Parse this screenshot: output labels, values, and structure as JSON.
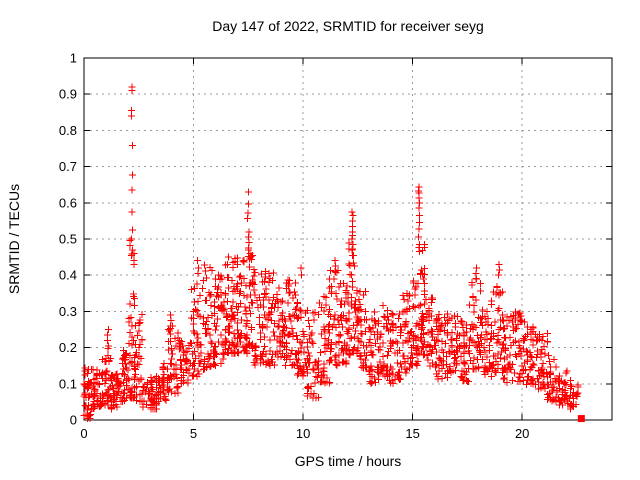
{
  "chart_data": {
    "type": "scatter",
    "title": "Day 147 of 2022, SRMTID for receiver seyg",
    "xlabel": "GPS time / hours",
    "ylabel": "SRMTID / TECUs",
    "xlim": [
      0,
      24.1
    ],
    "ylim": [
      0,
      1
    ],
    "xticks": [
      {
        "v": 0,
        "label": "0"
      },
      {
        "v": 5,
        "label": "5"
      },
      {
        "v": 10,
        "label": "10"
      },
      {
        "v": 15,
        "label": "15"
      },
      {
        "v": 20,
        "label": "20"
      }
    ],
    "yticks": [
      {
        "v": 0.0,
        "label": "0"
      },
      {
        "v": 0.1,
        "label": "0.1"
      },
      {
        "v": 0.2,
        "label": "0.2"
      },
      {
        "v": 0.3,
        "label": "0.3"
      },
      {
        "v": 0.4,
        "label": "0.4"
      },
      {
        "v": 0.5,
        "label": "0.5"
      },
      {
        "v": 0.6,
        "label": "0.6"
      },
      {
        "v": 0.7,
        "label": "0.7"
      },
      {
        "v": 0.8,
        "label": "0.8"
      },
      {
        "v": 0.9,
        "label": "0.9"
      },
      {
        "v": 1.0,
        "label": "1"
      }
    ],
    "grid": true,
    "legend": "none",
    "marker": "plus",
    "marker_color": "#ff0000",
    "grid_color": "#9b9b9b",
    "axis_color": "#000000",
    "background": "#ffffff",
    "seed": 42,
    "x_quantum_hours": 0.05,
    "density_bins": [
      [
        0.0,
        0.3,
        28,
        0.01,
        0.17,
        1.4
      ],
      [
        0.3,
        0.8,
        45,
        0.03,
        0.14,
        1.3
      ],
      [
        0.8,
        1.2,
        40,
        0.04,
        0.2,
        1.6
      ],
      [
        1.2,
        1.7,
        45,
        0.03,
        0.13,
        1.2
      ],
      [
        1.7,
        2.05,
        32,
        0.05,
        0.2,
        1.4
      ],
      [
        2.05,
        2.35,
        50,
        0.06,
        0.5,
        2.0
      ],
      [
        2.35,
        2.65,
        28,
        0.05,
        0.3,
        1.8
      ],
      [
        2.65,
        3.3,
        50,
        0.03,
        0.12,
        1.2
      ],
      [
        3.3,
        3.85,
        38,
        0.05,
        0.16,
        1.3
      ],
      [
        3.85,
        4.35,
        42,
        0.07,
        0.26,
        1.5
      ],
      [
        4.35,
        4.85,
        38,
        0.1,
        0.22,
        1.3
      ],
      [
        4.85,
        5.35,
        42,
        0.12,
        0.38,
        1.5
      ],
      [
        5.35,
        5.85,
        42,
        0.14,
        0.43,
        1.5
      ],
      [
        5.85,
        6.35,
        46,
        0.15,
        0.4,
        1.4
      ],
      [
        6.35,
        6.85,
        52,
        0.18,
        0.46,
        1.4
      ],
      [
        6.85,
        7.2,
        40,
        0.18,
        0.45,
        1.4
      ],
      [
        7.2,
        7.7,
        52,
        0.18,
        0.47,
        1.4
      ],
      [
        7.7,
        8.2,
        46,
        0.15,
        0.42,
        1.4
      ],
      [
        8.2,
        8.7,
        46,
        0.15,
        0.41,
        1.5
      ],
      [
        8.7,
        9.2,
        42,
        0.17,
        0.38,
        1.4
      ],
      [
        9.2,
        9.7,
        42,
        0.15,
        0.4,
        1.5
      ],
      [
        9.7,
        10.2,
        42,
        0.12,
        0.33,
        1.4
      ],
      [
        10.2,
        10.7,
        40,
        0.06,
        0.3,
        1.5
      ],
      [
        10.7,
        11.2,
        40,
        0.1,
        0.35,
        1.4
      ],
      [
        11.2,
        11.7,
        46,
        0.15,
        0.42,
        1.5
      ],
      [
        11.7,
        12.05,
        36,
        0.15,
        0.38,
        1.4
      ],
      [
        12.05,
        12.45,
        48,
        0.18,
        0.5,
        1.6
      ],
      [
        12.45,
        12.95,
        42,
        0.14,
        0.36,
        1.4
      ],
      [
        12.95,
        13.45,
        40,
        0.1,
        0.3,
        1.4
      ],
      [
        13.45,
        13.95,
        40,
        0.12,
        0.32,
        1.4
      ],
      [
        13.95,
        14.45,
        40,
        0.1,
        0.3,
        1.3
      ],
      [
        14.45,
        14.95,
        40,
        0.13,
        0.35,
        1.4
      ],
      [
        14.95,
        15.25,
        30,
        0.15,
        0.4,
        1.5
      ],
      [
        15.25,
        15.6,
        48,
        0.18,
        0.5,
        1.6
      ],
      [
        15.6,
        16.1,
        42,
        0.14,
        0.36,
        1.4
      ],
      [
        16.1,
        16.6,
        40,
        0.11,
        0.3,
        1.3
      ],
      [
        16.6,
        17.1,
        40,
        0.13,
        0.3,
        1.3
      ],
      [
        17.1,
        17.6,
        40,
        0.1,
        0.28,
        1.3
      ],
      [
        17.6,
        18.15,
        46,
        0.14,
        0.4,
        1.5
      ],
      [
        18.15,
        18.65,
        40,
        0.12,
        0.33,
        1.4
      ],
      [
        18.65,
        19.15,
        42,
        0.13,
        0.4,
        1.6
      ],
      [
        19.15,
        19.65,
        40,
        0.1,
        0.3,
        1.3
      ],
      [
        19.65,
        20.15,
        40,
        0.1,
        0.3,
        1.3
      ],
      [
        20.15,
        20.65,
        40,
        0.09,
        0.26,
        1.3
      ],
      [
        20.65,
        21.15,
        40,
        0.07,
        0.24,
        1.3
      ],
      [
        21.15,
        21.65,
        36,
        0.05,
        0.18,
        1.2
      ],
      [
        21.65,
        22.1,
        30,
        0.04,
        0.14,
        1.2
      ],
      [
        22.1,
        22.55,
        26,
        0.03,
        0.11,
        1.2
      ]
    ],
    "spike_columns": [
      [
        1.1,
        [
          0.25,
          0.235,
          0.22,
          0.205
        ]
      ],
      [
        2.2,
        [
          0.92,
          0.91,
          0.855,
          0.84,
          0.758,
          0.677,
          0.635,
          0.575,
          0.525,
          0.5,
          0.47,
          0.455
        ]
      ],
      [
        2.27,
        [
          0.46,
          0.44,
          0.43
        ]
      ],
      [
        3.95,
        [
          0.29,
          0.275,
          0.26
        ]
      ],
      [
        5.2,
        [
          0.44,
          0.42,
          0.405
        ]
      ],
      [
        7.5,
        [
          0.63,
          0.596,
          0.572,
          0.557,
          0.52,
          0.505,
          0.49,
          0.475
        ]
      ],
      [
        7.56,
        [
          0.46,
          0.45
        ]
      ],
      [
        8.3,
        [
          0.41,
          0.395
        ]
      ],
      [
        9.35,
        [
          0.385,
          0.37
        ]
      ],
      [
        9.9,
        [
          0.42,
          0.4
        ]
      ],
      [
        11.45,
        [
          0.44,
          0.425,
          0.41
        ]
      ],
      [
        12.25,
        [
          0.575,
          0.565,
          0.55,
          0.535,
          0.52,
          0.51,
          0.5,
          0.485,
          0.47,
          0.455
        ]
      ],
      [
        15.3,
        [
          0.644,
          0.632,
          0.627,
          0.613,
          0.6,
          0.586,
          0.565,
          0.545,
          0.527,
          0.505,
          0.485,
          0.465
        ]
      ],
      [
        17.9,
        [
          0.42,
          0.405,
          0.39
        ]
      ],
      [
        18.95,
        [
          0.43,
          0.415,
          0.4
        ]
      ]
    ],
    "near_zero_points": [
      [
        0.15,
        0.004
      ],
      [
        0.28,
        0.004
      ]
    ],
    "final_point": {
      "x": 22.7,
      "y": 0.004,
      "marker": "filled-square"
    }
  }
}
